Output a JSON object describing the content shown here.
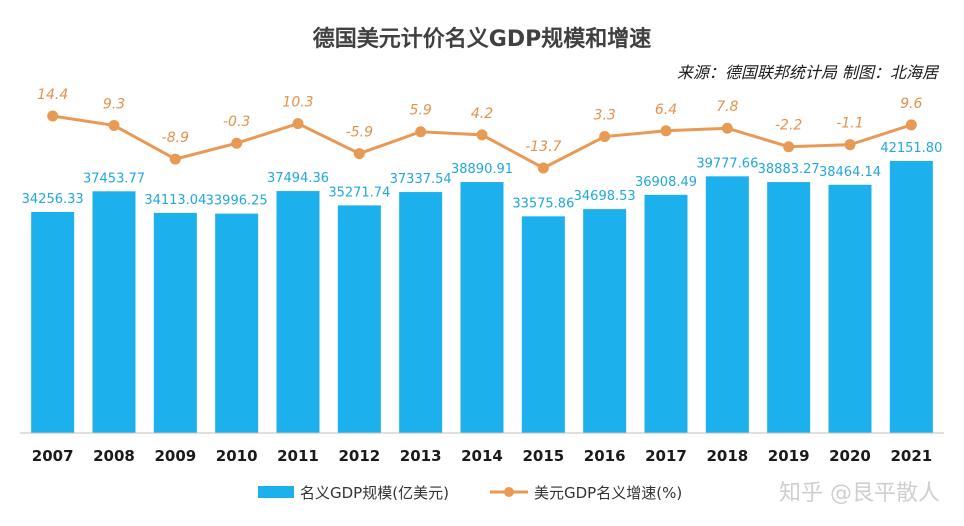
{
  "chart_data": {
    "type": "bar",
    "title": "德国美元计价名义GDP规模和增速",
    "source": "来源：德国联邦统计局 制图：北海居",
    "categories": [
      "2007",
      "2008",
      "2009",
      "2010",
      "2011",
      "2012",
      "2013",
      "2014",
      "2015",
      "2016",
      "2017",
      "2018",
      "2019",
      "2020",
      "2021"
    ],
    "series": [
      {
        "name": "名义GDP规模(亿美元)",
        "chart": "bar",
        "color": "#1cb0ec",
        "values": [
          34256.33,
          37453.77,
          34113.04,
          33996.25,
          37494.36,
          35271.74,
          37337.54,
          38890.91,
          33575.86,
          34698.53,
          36908.49,
          39777.66,
          38883.27,
          38464.14,
          42151.8
        ],
        "labels": [
          "34256.33",
          "37453.77",
          "34113.04",
          "33996.25",
          "37494.36",
          "35271.74",
          "37337.54",
          "38890.91",
          "33575.86",
          "34698.53",
          "36908.49",
          "39777.66",
          "38883.27",
          "38464.14",
          "42151.80"
        ]
      },
      {
        "name": "美元GDP名义增速(%)",
        "chart": "line",
        "color": "#e89a55",
        "values": [
          14.4,
          9.3,
          -8.9,
          -0.3,
          10.3,
          -5.9,
          5.9,
          4.2,
          -13.7,
          3.3,
          6.4,
          7.8,
          -2.2,
          -1.1,
          9.6
        ],
        "labels": [
          "14.4",
          "9.3",
          "-8.9",
          "-0.3",
          "10.3",
          "-5.9",
          "5.9",
          "4.2",
          "-13.7",
          "3.3",
          "6.4",
          "7.8",
          "-2.2",
          "-1.1",
          "9.6"
        ]
      }
    ],
    "legend_position": "bottom",
    "grid": false
  },
  "watermark": "知乎 @艮平散人"
}
